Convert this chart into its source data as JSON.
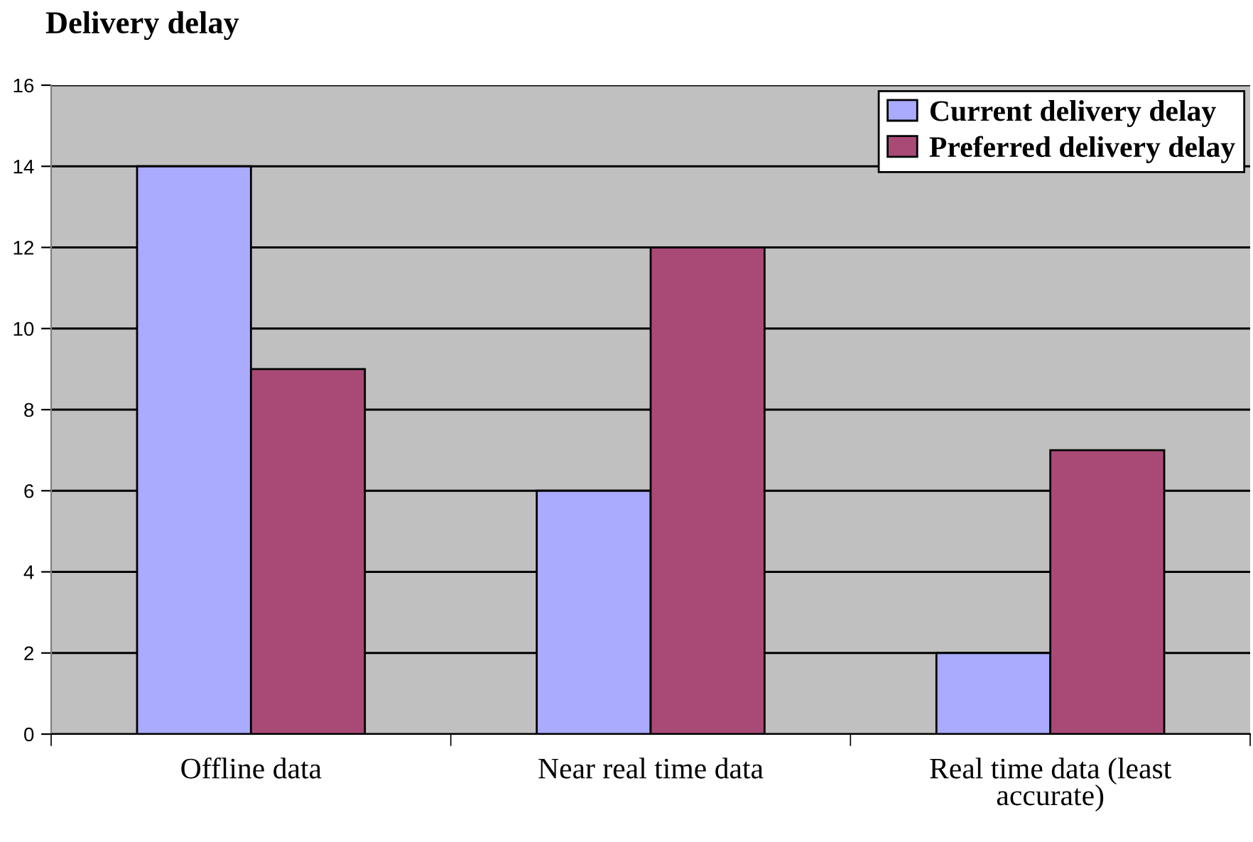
{
  "chart_data": {
    "type": "bar",
    "title": "Delivery delay",
    "categories": [
      "Offline data",
      "Near real time data",
      "Real time data (least accurate)"
    ],
    "series": [
      {
        "name": "Current delivery delay",
        "color": "#aaaaff",
        "values": [
          14,
          6,
          2
        ]
      },
      {
        "name": "Preferred delivery delay",
        "color": "#a94a76",
        "values": [
          9,
          12,
          7
        ]
      }
    ],
    "ylim": [
      0,
      16
    ],
    "yticks": [
      0,
      2,
      4,
      6,
      8,
      10,
      12,
      14,
      16
    ],
    "grid": "y",
    "legend": "top right"
  }
}
